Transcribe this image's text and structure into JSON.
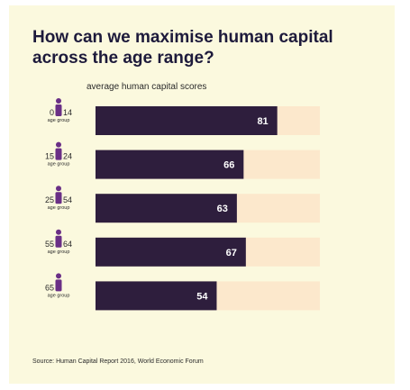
{
  "title": "How can we maximise human capital across the age range?",
  "chart_data": {
    "type": "bar",
    "orientation": "horizontal",
    "subtitle": "average human capital scores",
    "categories": [
      {
        "from": "0",
        "to": "14",
        "unit": "age group"
      },
      {
        "from": "15",
        "to": "24",
        "unit": "age group"
      },
      {
        "from": "25",
        "to": "54",
        "unit": "age group"
      },
      {
        "from": "55",
        "to": "64",
        "unit": "age group"
      },
      {
        "from": "65",
        "to": "",
        "unit": "age group"
      }
    ],
    "values": [
      81,
      66,
      63,
      67,
      54
    ],
    "xlim": [
      0,
      100
    ],
    "grid": false,
    "colors": {
      "bar": "#2e1e3d",
      "track": "#fce8cc",
      "icon": "#6a2f86",
      "value_label": "#ffffff"
    }
  },
  "source": "Source: Human Capital Report 2016, World Economic Forum"
}
